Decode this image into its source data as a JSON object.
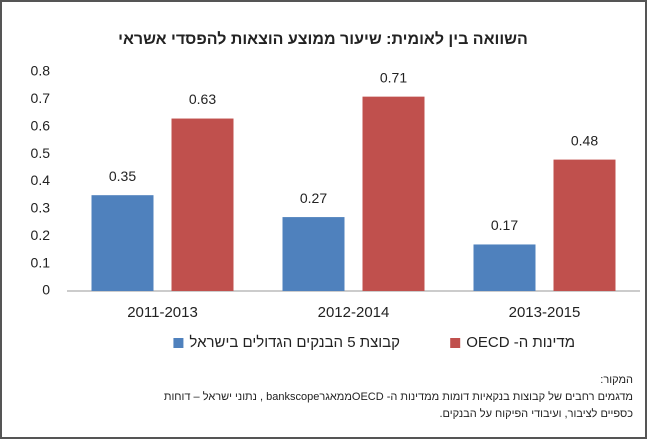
{
  "chart_data": {
    "type": "bar",
    "title": "השוואה בין לאומית: שיעור ממוצע הוצאות להפסדי אשראי",
    "categories": [
      "2011-2013",
      "2012-2014",
      "2013-2015"
    ],
    "series": [
      {
        "name": "קבוצת 5 הבנקים הגדולים בישראל",
        "color": "#4f81bd",
        "values": [
          0.35,
          0.27,
          0.17
        ]
      },
      {
        "name": "מדינות ה- OECD",
        "color": "#c0504d",
        "values": [
          0.63,
          0.71,
          0.48
        ]
      }
    ],
    "ylim": [
      0,
      0.8
    ],
    "yticks": [
      0,
      0.1,
      0.2,
      0.3,
      0.4,
      0.5,
      0.6,
      0.7,
      0.8
    ],
    "source_label": "המקור:",
    "source_lines": [
      "מדגמים רחבים של קבוצות בנקאיות דומות ממדינות ה- OECDממאגרbankscope , נתוני ישראל – דוחות",
      "כספיים לציבור, ועיבודי הפיקוח על הבנקים."
    ]
  }
}
